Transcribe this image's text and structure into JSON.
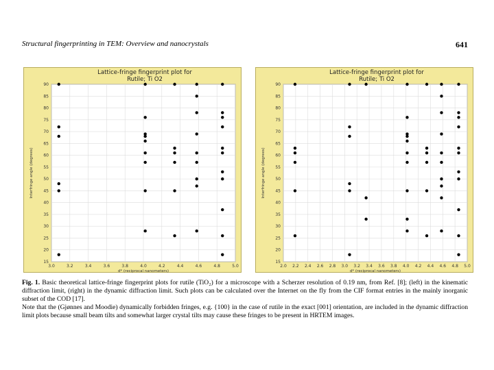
{
  "header": {
    "running_title": "Structural fingerprinting in TEM: Overview and nanocrystals",
    "page_number": "641"
  },
  "caption": {
    "label": "Fig. 1.",
    "text": "Basic theoretical lattice-fringe fingerprint plots for rutile (TiO₂) for a microscope with a Scherzer resolution of 0.19 nm, from Ref. [8]; (left) in the kinematic diffraction limit, (right) in the dynamic diffraction limit. Such plots can be calculated over the Internet on the fly from the CIF format entries in the mainly inorganic subset of the COD [17].",
    "note": "Note that the (Gjønnes and Moodie) dynamically forbidden fringes, e.g. {100} in the case of rutile in the exact [001] orientation, are included in the dynamic diffraction limit plots because small beam tilts and somewhat larger crystal tilts may cause these fringes to be present in HRTEM images."
  },
  "chart_data": [
    {
      "type": "scatter",
      "panel": "left",
      "title_line1": "Lattice-fringe fingerprint plot for",
      "title_line2": "Rutile; Ti O2",
      "xlabel": "d* (reciprocal nanometers)",
      "ylabel": "Interfringe angle (degrees)",
      "xlim": [
        3.0,
        5.0
      ],
      "ylim": [
        15,
        90
      ],
      "xticks": [
        "3.0",
        "3.2",
        "3.4",
        "3.6",
        "3.8",
        "4.0",
        "4.2",
        "4.4",
        "4.6",
        "4.8",
        "5.0"
      ],
      "yticks": [
        "15",
        "20",
        "25",
        "30",
        "35",
        "40",
        "45",
        "50",
        "55",
        "60",
        "65",
        "70",
        "75",
        "80",
        "85",
        "90"
      ],
      "points": [
        [
          3.08,
          90
        ],
        [
          3.08,
          72
        ],
        [
          3.08,
          68
        ],
        [
          3.08,
          48
        ],
        [
          3.08,
          45
        ],
        [
          3.08,
          18
        ],
        [
          4.02,
          90
        ],
        [
          4.02,
          76
        ],
        [
          4.02,
          69
        ],
        [
          4.02,
          68
        ],
        [
          4.02,
          66
        ],
        [
          4.02,
          61
        ],
        [
          4.02,
          57
        ],
        [
          4.02,
          45
        ],
        [
          4.02,
          28
        ],
        [
          4.34,
          90
        ],
        [
          4.34,
          63
        ],
        [
          4.34,
          61
        ],
        [
          4.34,
          57
        ],
        [
          4.34,
          45
        ],
        [
          4.34,
          26
        ],
        [
          4.58,
          90
        ],
        [
          4.58,
          85
        ],
        [
          4.58,
          78
        ],
        [
          4.58,
          69
        ],
        [
          4.58,
          61
        ],
        [
          4.58,
          57
        ],
        [
          4.58,
          50
        ],
        [
          4.58,
          47
        ],
        [
          4.58,
          28
        ],
        [
          4.86,
          90
        ],
        [
          4.86,
          78
        ],
        [
          4.86,
          76
        ],
        [
          4.86,
          72
        ],
        [
          4.86,
          63
        ],
        [
          4.86,
          61
        ],
        [
          4.86,
          53
        ],
        [
          4.86,
          50
        ],
        [
          4.86,
          37
        ],
        [
          4.86,
          26
        ],
        [
          4.86,
          18
        ]
      ]
    },
    {
      "type": "scatter",
      "panel": "right",
      "title_line1": "Lattice-fringe fingerprint plot for",
      "title_line2": "Rutile; Ti O2",
      "xlabel": "d* (reciprocal nanometers)",
      "ylabel": "Interfringe angle (degrees)",
      "xlim": [
        2.0,
        5.0
      ],
      "ylim": [
        15,
        90
      ],
      "xticks": [
        "2.0",
        "2.2",
        "2.4",
        "2.6",
        "2.8",
        "3.0",
        "3.2",
        "3.4",
        "3.6",
        "3.8",
        "4.0",
        "4.2",
        "4.4",
        "4.6",
        "4.8",
        "5.0"
      ],
      "yticks": [
        "15",
        "20",
        "25",
        "30",
        "35",
        "40",
        "45",
        "50",
        "55",
        "60",
        "65",
        "70",
        "75",
        "80",
        "85",
        "90"
      ],
      "points": [
        [
          2.19,
          90
        ],
        [
          2.19,
          63
        ],
        [
          2.19,
          61
        ],
        [
          2.19,
          57
        ],
        [
          2.19,
          45
        ],
        [
          2.19,
          26
        ],
        [
          3.08,
          90
        ],
        [
          3.08,
          72
        ],
        [
          3.08,
          68
        ],
        [
          3.08,
          48
        ],
        [
          3.08,
          45
        ],
        [
          3.08,
          18
        ],
        [
          3.35,
          90
        ],
        [
          3.35,
          42
        ],
        [
          3.35,
          33
        ],
        [
          4.02,
          90
        ],
        [
          4.02,
          76
        ],
        [
          4.02,
          69
        ],
        [
          4.02,
          68
        ],
        [
          4.02,
          66
        ],
        [
          4.02,
          61
        ],
        [
          4.02,
          57
        ],
        [
          4.02,
          45
        ],
        [
          4.02,
          33
        ],
        [
          4.02,
          28
        ],
        [
          4.34,
          90
        ],
        [
          4.34,
          63
        ],
        [
          4.34,
          61
        ],
        [
          4.34,
          57
        ],
        [
          4.34,
          45
        ],
        [
          4.34,
          26
        ],
        [
          4.58,
          90
        ],
        [
          4.58,
          85
        ],
        [
          4.58,
          78
        ],
        [
          4.58,
          69
        ],
        [
          4.58,
          61
        ],
        [
          4.58,
          57
        ],
        [
          4.58,
          50
        ],
        [
          4.58,
          47
        ],
        [
          4.58,
          42
        ],
        [
          4.58,
          28
        ],
        [
          4.86,
          90
        ],
        [
          4.86,
          78
        ],
        [
          4.86,
          76
        ],
        [
          4.86,
          72
        ],
        [
          4.86,
          63
        ],
        [
          4.86,
          61
        ],
        [
          4.86,
          53
        ],
        [
          4.86,
          50
        ],
        [
          4.86,
          37
        ],
        [
          4.86,
          26
        ],
        [
          4.86,
          18
        ]
      ]
    }
  ]
}
